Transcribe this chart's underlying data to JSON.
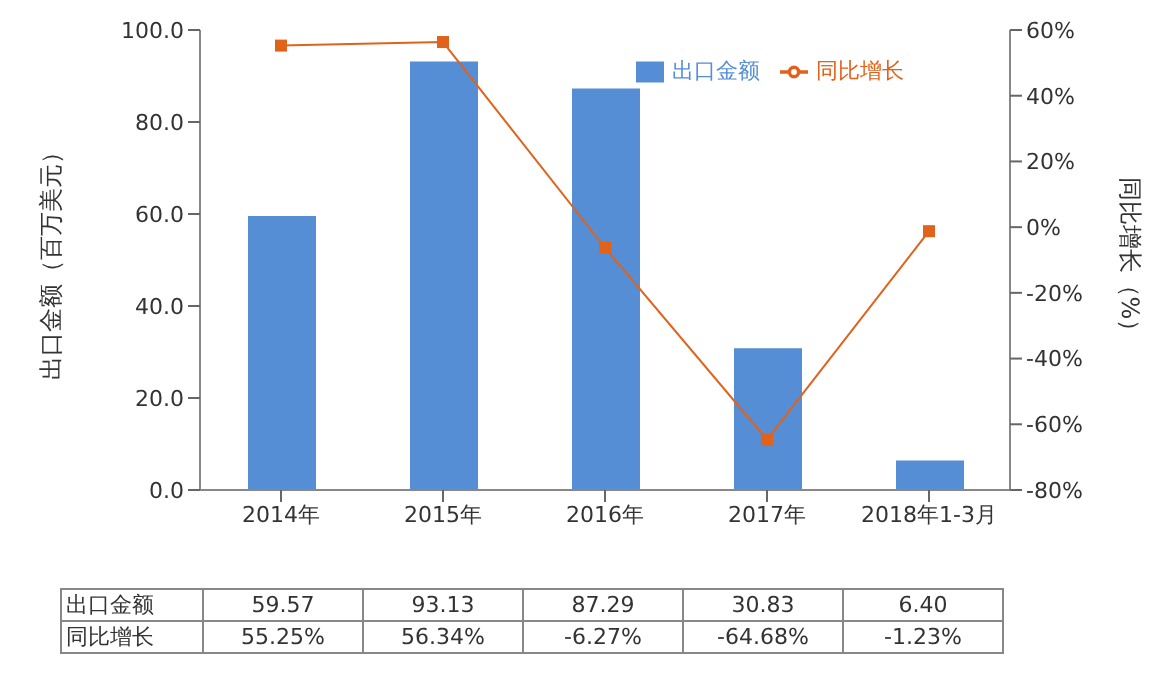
{
  "chart_data": {
    "type": "bar",
    "ylabel": "出口金额（百万美元）",
    "y2label": "同比增长（%）",
    "categories": [
      "2014年",
      "2015年",
      "2016年",
      "2017年",
      "2018年1-3月"
    ],
    "series": [
      {
        "name": "出口金额",
        "color": "#558ed5",
        "values": [
          59.57,
          93.13,
          87.29,
          30.83,
          6.4
        ],
        "value_labels": [
          "59.57",
          "93.13",
          "87.29",
          "30.83",
          "6.40"
        ]
      },
      {
        "name": "同比增长",
        "type": "line",
        "axis": "y2",
        "color": "#e0621b",
        "values": [
          55.25,
          56.34,
          -6.27,
          -64.68,
          -1.23
        ],
        "value_labels": [
          "55.25%",
          "56.34%",
          "-6.27%",
          "-64.68%",
          "-1.23%"
        ]
      }
    ],
    "ylim": [
      0,
      100
    ],
    "yticks": [
      {
        "value": 0,
        "label": "0.0"
      },
      {
        "value": 20,
        "label": "20.0"
      },
      {
        "value": 40,
        "label": "40.0"
      },
      {
        "value": 60,
        "label": "60.0"
      },
      {
        "value": 80,
        "label": "80.0"
      },
      {
        "value": 100,
        "label": "100.0"
      }
    ],
    "y2lim": [
      -80,
      60
    ],
    "y2ticks": [
      {
        "value": -80,
        "label": "-80%"
      },
      {
        "value": -60,
        "label": "-60%"
      },
      {
        "value": -40,
        "label": "-40%"
      },
      {
        "value": -20,
        "label": "-20%"
      },
      {
        "value": 0,
        "label": "0%"
      },
      {
        "value": 20,
        "label": "20%"
      },
      {
        "value": 40,
        "label": "40%"
      },
      {
        "value": 60,
        "label": "60%"
      }
    ],
    "legend": "top right",
    "marker": "square",
    "line_style": "solid"
  }
}
